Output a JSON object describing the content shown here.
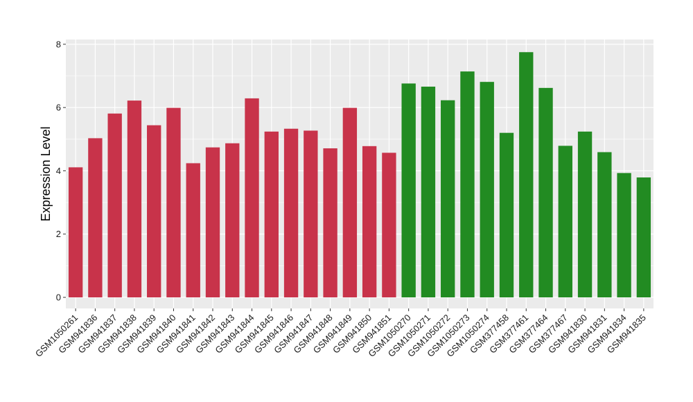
{
  "chart_data": {
    "type": "bar",
    "title": "",
    "xlabel": "",
    "ylabel": "Expression Level",
    "ylim": [
      -0.35,
      8.15
    ],
    "yticks": [
      0,
      2,
      4,
      6,
      8
    ],
    "grid": true,
    "legend": "none",
    "colors": {
      "group1": "#C8334A",
      "group2": "#228B22",
      "panel": "#EBEBEB",
      "grid": "#FFFFFF"
    },
    "categories": [
      "GSM1050261",
      "GSM941836",
      "GSM941837",
      "GSM941838",
      "GSM941839",
      "GSM941840",
      "GSM941841",
      "GSM941842",
      "GSM941843",
      "GSM941844",
      "GSM941845",
      "GSM941846",
      "GSM941847",
      "GSM941848",
      "GSM941849",
      "GSM941850",
      "GSM941851",
      "GSM1050270",
      "GSM1050271",
      "GSM1050272",
      "GSM1050273",
      "GSM1050274",
      "GSM377458",
      "GSM377461",
      "GSM377464",
      "GSM377467",
      "GSM941830",
      "GSM941831",
      "GSM941834",
      "GSM941835"
    ],
    "values": [
      4.11,
      5.03,
      5.81,
      6.22,
      5.44,
      5.99,
      4.24,
      4.74,
      4.87,
      6.29,
      5.24,
      5.33,
      5.27,
      4.71,
      5.99,
      4.78,
      4.57,
      6.76,
      6.66,
      6.23,
      7.14,
      6.81,
      5.2,
      7.75,
      6.62,
      4.79,
      5.24,
      4.59,
      3.93,
      3.79
    ],
    "groups": [
      1,
      1,
      1,
      1,
      1,
      1,
      1,
      1,
      1,
      1,
      1,
      1,
      1,
      1,
      1,
      1,
      1,
      2,
      2,
      2,
      2,
      2,
      2,
      2,
      2,
      2,
      2,
      2,
      2,
      2
    ]
  }
}
